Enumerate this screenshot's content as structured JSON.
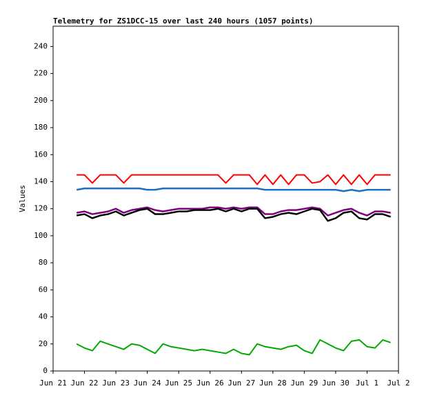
{
  "chart_data": {
    "type": "line",
    "title": "Telemetry for ZS1DCC-15 over last 240 hours (1057 points)",
    "y_label": "Values",
    "xlim": [
      0,
      11
    ],
    "xticks": [
      {
        "value": 0,
        "label": "Jun 21"
      },
      {
        "value": 1,
        "label": "Jun 22"
      },
      {
        "value": 2,
        "label": "Jun 23"
      },
      {
        "value": 3,
        "label": "Jun 24"
      },
      {
        "value": 4,
        "label": "Jun 25"
      },
      {
        "value": 5,
        "label": "Jun 26"
      },
      {
        "value": 6,
        "label": "Jun 27"
      },
      {
        "value": 7,
        "label": "Jun 28"
      },
      {
        "value": 8,
        "label": "Jun 29"
      },
      {
        "value": 9,
        "label": "Jun 30"
      },
      {
        "value": 10,
        "label": "Jul 1"
      },
      {
        "value": 11,
        "label": "Jul 2"
      }
    ],
    "ylim": [
      0,
      255
    ],
    "yticks": [
      0,
      20,
      40,
      60,
      80,
      100,
      120,
      140,
      160,
      180,
      200,
      220,
      240
    ],
    "x": [
      0.75,
      1.0,
      1.25,
      1.5,
      1.75,
      2.0,
      2.25,
      2.5,
      2.75,
      3.0,
      3.25,
      3.5,
      3.75,
      4.0,
      4.25,
      4.5,
      4.75,
      5.0,
      5.25,
      5.5,
      5.75,
      6.0,
      6.25,
      6.5,
      6.75,
      7.0,
      7.25,
      7.5,
      7.75,
      8.0,
      8.25,
      8.5,
      8.75,
      9.0,
      9.25,
      9.5,
      9.75,
      10.0,
      10.25,
      10.5,
      10.75
    ],
    "series": [
      {
        "color": "#ff0000",
        "width": 2,
        "values": [
          145,
          145,
          139,
          145,
          145,
          145,
          139,
          145,
          145,
          145,
          145,
          145,
          145,
          145,
          145,
          145,
          145,
          145,
          145,
          139,
          145,
          145,
          145,
          138,
          145,
          138,
          145,
          138,
          145,
          145,
          139,
          140,
          145,
          138,
          145,
          138,
          145,
          138,
          145,
          145,
          145
        ]
      },
      {
        "color": "#1f6fbf",
        "width": 2.5,
        "values": [
          134,
          135,
          135,
          135,
          135,
          135,
          135,
          135,
          135,
          134,
          134,
          135,
          135,
          135,
          135,
          135,
          135,
          135,
          135,
          135,
          135,
          135,
          135,
          135,
          134,
          134,
          134,
          134,
          134,
          134,
          134,
          134,
          134,
          134,
          133,
          134,
          133,
          134,
          134,
          134,
          134
        ]
      },
      {
        "color": "#800080",
        "width": 2.5,
        "values": [
          117,
          118,
          116,
          117,
          118,
          120,
          117,
          119,
          120,
          121,
          119,
          118,
          119,
          120,
          120,
          120,
          120,
          121,
          121,
          120,
          121,
          120,
          121,
          121,
          116,
          116,
          118,
          119,
          119,
          120,
          121,
          120,
          115,
          117,
          119,
          120,
          117,
          115,
          118,
          118,
          117
        ]
      },
      {
        "color": "#000000",
        "width": 2.5,
        "values": [
          115,
          116,
          113,
          115,
          116,
          118,
          115,
          117,
          119,
          120,
          116,
          116,
          117,
          118,
          118,
          119,
          119,
          119,
          120,
          118,
          120,
          118,
          120,
          120,
          113,
          114,
          116,
          117,
          116,
          118,
          120,
          119,
          111,
          113,
          117,
          118,
          113,
          112,
          116,
          116,
          114
        ]
      },
      {
        "color": "#00aa00",
        "width": 2,
        "values": [
          20,
          17,
          15,
          22,
          20,
          18,
          16,
          20,
          19,
          16,
          13,
          20,
          18,
          17,
          16,
          15,
          16,
          15,
          14,
          13,
          16,
          13,
          12,
          20,
          18,
          17,
          16,
          18,
          19,
          15,
          13,
          23,
          20,
          17,
          15,
          22,
          23,
          18,
          17,
          23,
          21
        ]
      }
    ]
  }
}
